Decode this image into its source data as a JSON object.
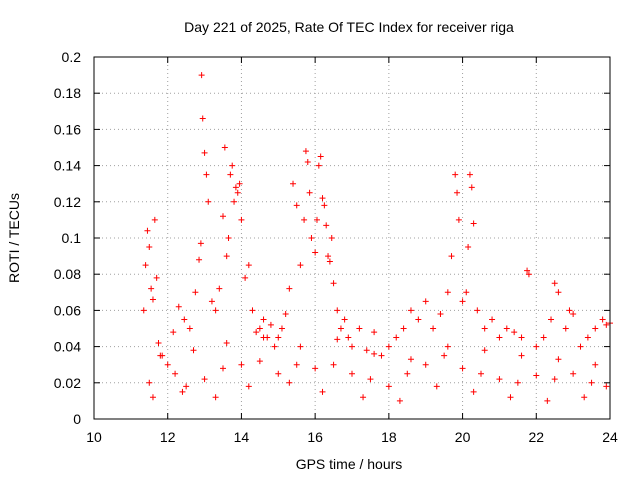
{
  "chart_data": {
    "type": "scatter",
    "title": "Day 221 of 2025, Rate Of TEC Index for receiver riga",
    "xlabel": "GPS time / hours",
    "ylabel": "ROTI / TECUs",
    "xlim": [
      10,
      24
    ],
    "ylim": [
      0,
      0.2
    ],
    "xticks": [
      "10",
      "12",
      "14",
      "16",
      "18",
      "20",
      "22",
      "24"
    ],
    "yticks": [
      "0",
      "0.02",
      "0.04",
      "0.06",
      "0.08",
      "0.1",
      "0.12",
      "0.14",
      "0.16",
      "0.18",
      "0.2"
    ],
    "grid": true,
    "marker": "+",
    "color": "#ff0000",
    "series": [
      {
        "x": [
          11.35,
          11.4,
          11.45,
          11.5,
          11.55,
          11.6,
          11.65,
          11.7,
          11.75,
          11.85,
          12.0,
          12.15,
          12.3,
          12.45,
          12.6,
          12.75,
          12.85,
          12.9,
          12.92,
          12.95,
          13.0,
          13.05,
          13.1,
          13.2,
          13.3,
          13.4,
          13.5,
          13.55,
          13.6,
          13.65,
          13.7,
          13.75,
          13.8,
          13.85,
          13.9,
          13.95,
          14.0,
          14.1,
          14.2,
          14.3,
          14.4,
          14.5,
          14.6,
          14.7,
          14.8,
          14.9,
          15.0,
          15.1,
          15.2,
          15.3,
          15.4,
          15.5,
          15.6,
          15.7,
          15.75,
          15.8,
          15.85,
          15.9,
          16.0,
          16.05,
          16.1,
          16.15,
          16.2,
          16.25,
          16.3,
          16.35,
          16.4,
          16.45,
          16.5,
          16.6,
          16.7,
          16.8,
          16.9,
          17.0,
          17.2,
          17.4,
          17.6,
          17.8,
          18.0,
          18.2,
          18.4,
          18.6,
          18.8,
          19.0,
          19.2,
          19.4,
          19.6,
          19.7,
          19.8,
          19.85,
          19.9,
          20.0,
          20.1,
          20.15,
          20.2,
          20.25,
          20.3,
          20.4,
          20.6,
          20.8,
          21.0,
          21.2,
          21.4,
          21.6,
          21.75,
          21.8,
          22.0,
          22.2,
          22.4,
          22.5,
          22.6,
          22.8,
          22.9,
          23.0,
          23.2,
          23.4,
          23.6,
          23.8,
          23.9,
          24.0,
          11.5,
          12.2,
          12.5,
          13.0,
          13.5,
          14.0,
          14.5,
          15.0,
          15.5,
          16.0,
          16.5,
          17.0,
          17.5,
          18.0,
          18.5,
          19.0,
          19.5,
          20.0,
          20.5,
          21.0,
          21.5,
          22.0,
          22.5,
          23.0,
          23.5,
          23.9,
          11.6,
          12.4,
          13.3,
          14.2,
          15.3,
          16.2,
          17.3,
          18.3,
          19.3,
          20.3,
          21.3,
          22.3,
          23.3,
          11.8,
          12.7,
          13.6,
          14.6,
          15.6,
          16.6,
          17.6,
          18.6,
          19.6,
          20.6,
          21.6,
          22.6,
          23.6
        ],
        "y": [
          0.06,
          0.085,
          0.104,
          0.095,
          0.072,
          0.066,
          0.11,
          0.078,
          0.042,
          0.035,
          0.03,
          0.048,
          0.062,
          0.055,
          0.05,
          0.07,
          0.088,
          0.097,
          0.19,
          0.166,
          0.147,
          0.135,
          0.12,
          0.065,
          0.06,
          0.072,
          0.112,
          0.15,
          0.09,
          0.1,
          0.135,
          0.14,
          0.12,
          0.128,
          0.125,
          0.13,
          0.11,
          0.078,
          0.085,
          0.06,
          0.048,
          0.05,
          0.055,
          0.045,
          0.052,
          0.04,
          0.045,
          0.05,
          0.058,
          0.072,
          0.13,
          0.118,
          0.085,
          0.11,
          0.148,
          0.142,
          0.125,
          0.1,
          0.092,
          0.11,
          0.14,
          0.145,
          0.122,
          0.118,
          0.107,
          0.09,
          0.087,
          0.1,
          0.075,
          0.06,
          0.05,
          0.055,
          0.045,
          0.04,
          0.05,
          0.038,
          0.048,
          0.035,
          0.04,
          0.045,
          0.05,
          0.06,
          0.055,
          0.065,
          0.05,
          0.058,
          0.07,
          0.09,
          0.135,
          0.125,
          0.11,
          0.065,
          0.07,
          0.095,
          0.135,
          0.128,
          0.108,
          0.06,
          0.05,
          0.055,
          0.045,
          0.05,
          0.048,
          0.045,
          0.082,
          0.08,
          0.04,
          0.045,
          0.055,
          0.075,
          0.07,
          0.05,
          0.06,
          0.058,
          0.04,
          0.045,
          0.05,
          0.055,
          0.052,
          0.053,
          0.02,
          0.025,
          0.018,
          0.022,
          0.028,
          0.03,
          0.032,
          0.025,
          0.03,
          0.028,
          0.03,
          0.025,
          0.022,
          0.018,
          0.025,
          0.03,
          0.035,
          0.028,
          0.025,
          0.022,
          0.02,
          0.024,
          0.022,
          0.025,
          0.02,
          0.018,
          0.012,
          0.015,
          0.012,
          0.018,
          0.02,
          0.015,
          0.012,
          0.01,
          0.018,
          0.015,
          0.012,
          0.01,
          0.012,
          0.035,
          0.038,
          0.042,
          0.045,
          0.04,
          0.044,
          0.036,
          0.033,
          0.04,
          0.038,
          0.035,
          0.033,
          0.03
        ]
      }
    ]
  }
}
